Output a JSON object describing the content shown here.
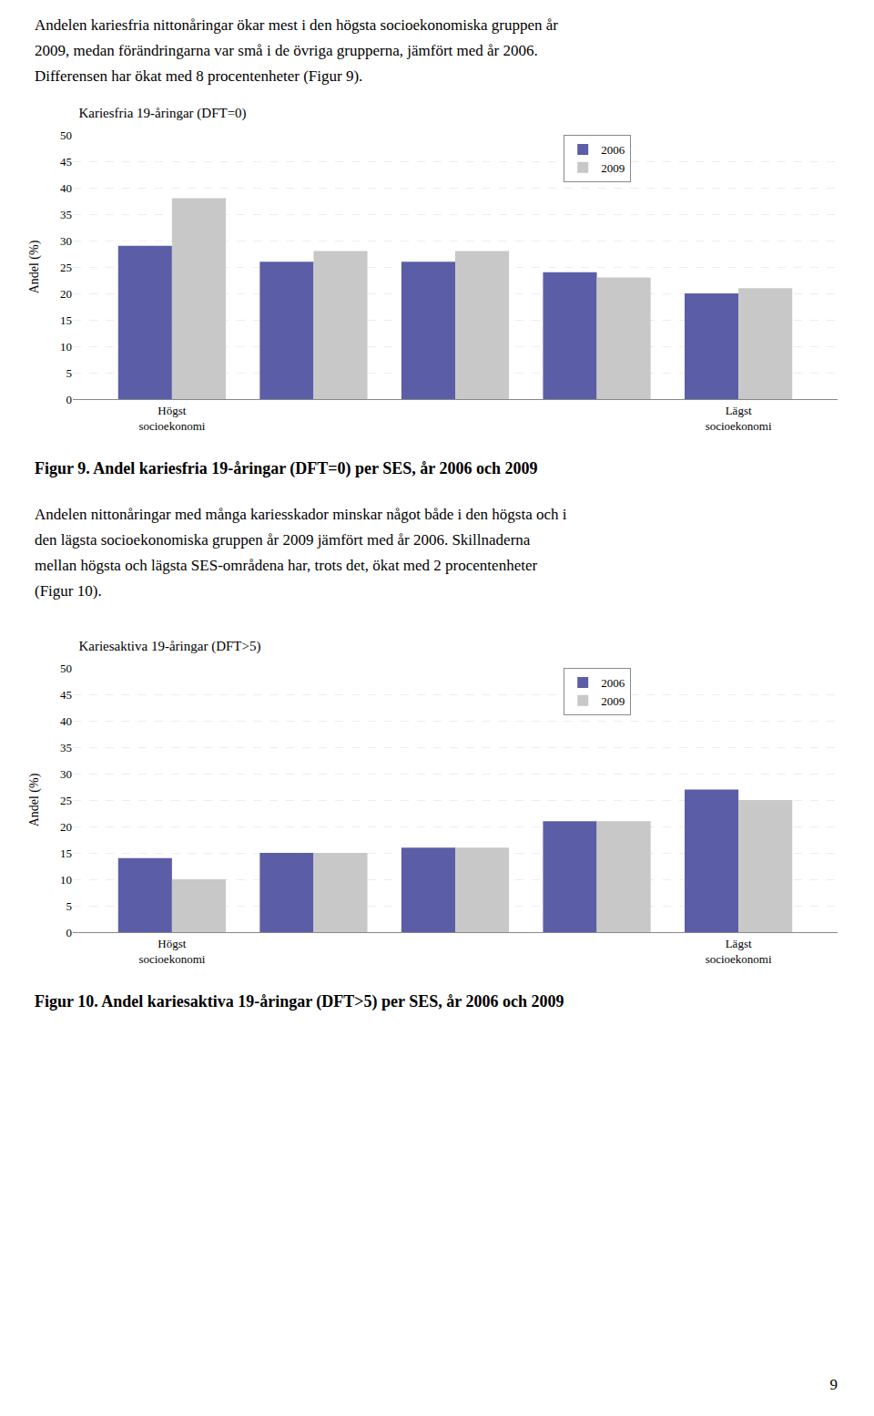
{
  "intro_text": [
    "Andelen kariesfria nittonåringar ökar mest i den högsta socioekonomiska gruppen år",
    "2009, medan förändringarna var små i de övriga grupperna, jämfört med år 2006.",
    "Differensen har ökat med 8 procentenheter (Figur 9)."
  ],
  "middle_text": [
    "Andelen nittonåringar med många kariesskador minskar något både i den högsta och i",
    "den lägsta socioekonomiska gruppen år 2009 jämfört med år 2006. Skillnaderna",
    "mellan högsta och lägsta SES-områdena har, trots det, ökat med 2 procentenheter",
    "(Figur 10)."
  ],
  "page_number": "9",
  "chart_data": [
    {
      "type": "bar",
      "title": "Kariesfria 19-åringar (DFT=0)",
      "caption": "Figur 9. Andel kariesfria 19-åringar (DFT=0) per SES, år 2006 och 2009",
      "categories": [
        "Högst\nsocioekonomi",
        null,
        null,
        null,
        "Lägst\nsocioekonomi"
      ],
      "series": [
        {
          "name": "2006",
          "color": "#5b5ea6",
          "values": [
            29,
            26,
            26,
            24,
            20
          ]
        },
        {
          "name": "2009",
          "color": "#c8c8c8",
          "values": [
            38,
            28,
            28,
            23,
            21
          ]
        }
      ],
      "ylabel": "Andel (%)",
      "ylim": [
        0,
        50
      ],
      "yticks": [
        0,
        5,
        10,
        15,
        20,
        25,
        30,
        35,
        40,
        45,
        50
      ],
      "grid": true,
      "legend": "top"
    },
    {
      "type": "bar",
      "title": "Kariesaktiva 19-åringar (DFT>5)",
      "caption": "Figur 10. Andel kariesaktiva 19-åringar (DFT>5) per SES, år 2006 och 2009",
      "categories": [
        "Högst\nsocioekonomi",
        null,
        null,
        null,
        "Lägst\nsocioekonomi"
      ],
      "series": [
        {
          "name": "2006",
          "color": "#5b5ea6",
          "values": [
            14,
            15,
            16,
            21,
            27
          ]
        },
        {
          "name": "2009",
          "color": "#c8c8c8",
          "values": [
            10,
            15,
            16,
            21,
            25
          ]
        }
      ],
      "ylabel": "Andel (%)",
      "ylim": [
        0,
        50
      ],
      "yticks": [
        0,
        5,
        10,
        15,
        20,
        25,
        30,
        35,
        40,
        45,
        50
      ],
      "grid": true,
      "legend": "top"
    }
  ]
}
